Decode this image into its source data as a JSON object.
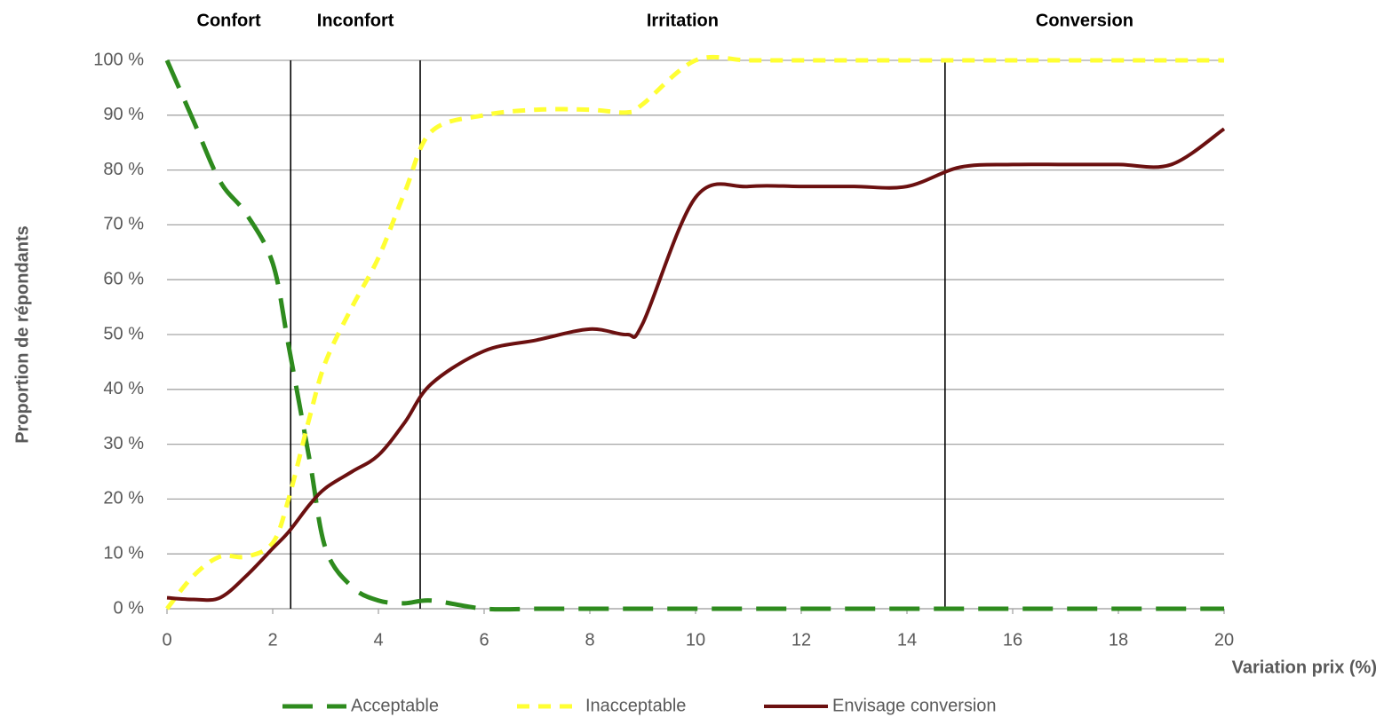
{
  "chart_data": {
    "type": "line",
    "x_label": "Variation prix (%)",
    "y_label": "Proportion de répondants",
    "x": [
      0,
      0.5,
      1,
      1.5,
      2,
      2.3,
      2.7,
      3,
      3.5,
      4,
      4.5,
      5,
      6,
      7,
      8,
      8.7,
      9,
      10,
      11,
      12,
      13,
      14,
      15,
      16,
      17,
      18,
      19,
      20
    ],
    "series": [
      {
        "name": "Acceptable",
        "color": "#2e8b1e",
        "dash": "long",
        "values": [
          100,
          89,
          78,
          72,
          63,
          48,
          27,
          11,
          4,
          1.5,
          1,
          1.5,
          0,
          0,
          0,
          0,
          0,
          0,
          0,
          0,
          0,
          0,
          0,
          0,
          0,
          0,
          0,
          0
        ]
      },
      {
        "name": "Inacceptable",
        "color": "#ffff33",
        "dash": "short",
        "values": [
          0,
          6,
          9.5,
          9.5,
          12,
          20,
          35,
          45,
          55,
          64,
          76,
          87,
          90,
          91,
          91,
          90.5,
          92,
          100,
          100,
          100,
          100,
          100,
          100,
          100,
          100,
          100,
          100,
          100
        ]
      },
      {
        "name": "Envisage conversion",
        "color": "#6b1010",
        "dash": "solid",
        "values": [
          2,
          1.7,
          2,
          6,
          11,
          14,
          19,
          22,
          25,
          28,
          34,
          41,
          47,
          49,
          51,
          50,
          52,
          75,
          77,
          77,
          77,
          77,
          80.5,
          81,
          81,
          81,
          81,
          87.5
        ]
      }
    ],
    "zones": [
      {
        "label": "Confort",
        "end": 2.34
      },
      {
        "label": "Inconfort",
        "end": 4.79
      },
      {
        "label": "Irritation",
        "end": 14.72
      },
      {
        "label": "Conversion"
      }
    ],
    "xlim": [
      0,
      20
    ],
    "xticks": [
      0,
      2,
      4,
      6,
      8,
      10,
      12,
      14,
      16,
      18,
      20
    ],
    "ylim": [
      0,
      100
    ],
    "yticks": [
      {
        "value": 0,
        "label": "0 %"
      },
      {
        "value": 10,
        "label": "10 %"
      },
      {
        "value": 20,
        "label": "20 %"
      },
      {
        "value": 30,
        "label": "30 %"
      },
      {
        "value": 40,
        "label": "40 %"
      },
      {
        "value": 50,
        "label": "50 %"
      },
      {
        "value": 60,
        "label": "60 %"
      },
      {
        "value": 70,
        "label": "70 %"
      },
      {
        "value": 80,
        "label": "80 %"
      },
      {
        "value": 90,
        "label": "90 %"
      },
      {
        "value": 100,
        "label": "100 %"
      }
    ],
    "grid": true,
    "legend": "bottom"
  }
}
